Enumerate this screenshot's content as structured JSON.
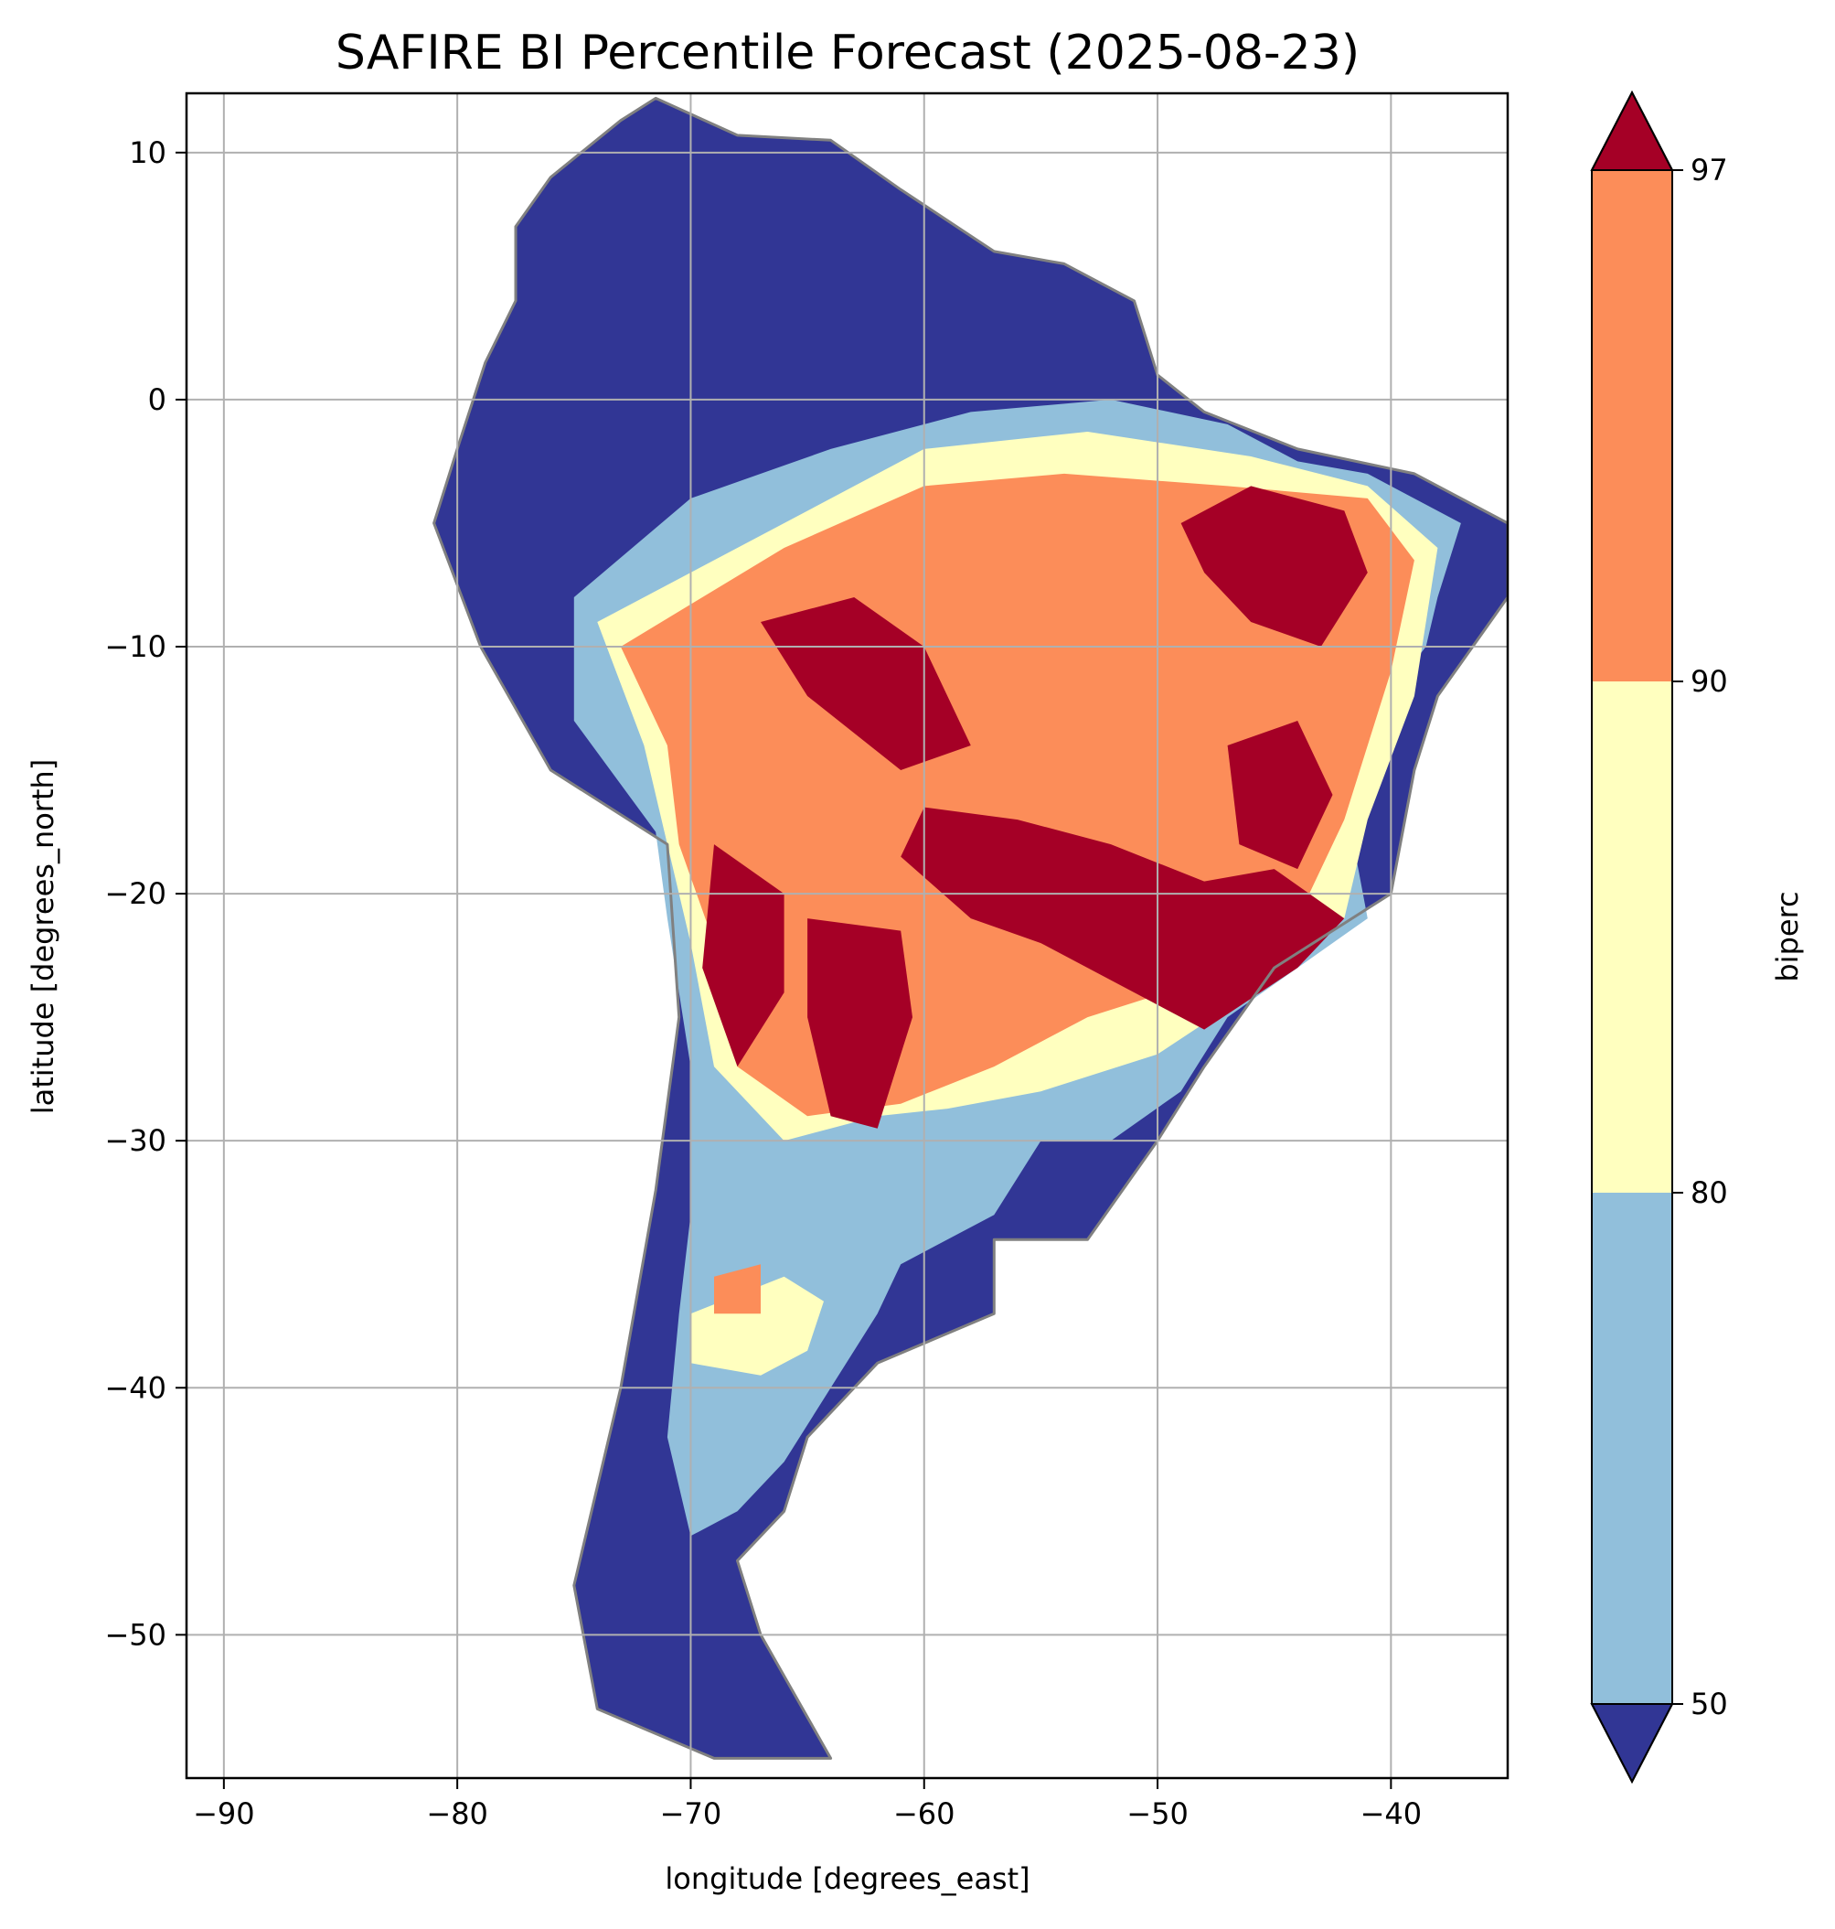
{
  "chart_data": {
    "type": "heatmap",
    "title": "SAFIRE BI Percentile Forecast (2025-08-23)",
    "xlabel": "longitude [degrees_east]",
    "ylabel": "latitude [degrees_north]",
    "xlim": [
      -91.6,
      -35.0
    ],
    "ylim": [
      -55.8,
      12.4
    ],
    "xticks": [
      -90,
      -80,
      -70,
      -60,
      -50,
      -40
    ],
    "xtick_labels": [
      "−90",
      "−80",
      "−70",
      "−60",
      "−50",
      "−40"
    ],
    "yticks": [
      10,
      0,
      -10,
      -20,
      -30,
      -40,
      -50
    ],
    "ytick_labels": [
      "10",
      "0",
      "−10",
      "−20",
      "−30",
      "−40",
      "−50"
    ],
    "grid": true,
    "colorbar": {
      "label": "biperc",
      "boundaries": [
        50,
        80,
        90,
        97
      ],
      "tick_labels": [
        "50",
        "80",
        "90",
        "97"
      ],
      "extend": "both",
      "under_color": "#313695",
      "over_color": "#a50026",
      "colors": [
        "#91bfdb",
        "#ffffbf",
        "#fc8d59"
      ]
    },
    "border_color": "#808080",
    "grid_color": "#b0b0b0",
    "regions": [
      {
        "category": "<50",
        "color": "#313695",
        "lon_lat": [
          [
            -80,
            -2
          ],
          [
            -81,
            -5
          ],
          [
            -79,
            -10
          ],
          [
            -76,
            -15
          ],
          [
            -71,
            -18
          ],
          [
            -70.5,
            -25
          ],
          [
            -71.5,
            -32
          ],
          [
            -73,
            -40
          ],
          [
            -75,
            -48
          ],
          [
            -74,
            -53
          ],
          [
            -69,
            -55
          ],
          [
            -64,
            -55
          ],
          [
            -67,
            -50
          ],
          [
            -68,
            -47
          ],
          [
            -66,
            -45
          ],
          [
            -65,
            -42
          ],
          [
            -62,
            -39
          ],
          [
            -57,
            -37
          ],
          [
            -57,
            -34
          ],
          [
            -53,
            -34
          ],
          [
            -50,
            -30
          ],
          [
            -48,
            -27
          ],
          [
            -45,
            -23
          ],
          [
            -40,
            -20
          ],
          [
            -39,
            -15
          ],
          [
            -38,
            -12
          ],
          [
            -35,
            -8
          ],
          [
            -35,
            -5
          ],
          [
            -39,
            -3
          ],
          [
            -44,
            -2
          ],
          [
            -48,
            -0.5
          ],
          [
            -50,
            1
          ],
          [
            -51,
            4
          ],
          [
            -54,
            5.5
          ],
          [
            -57,
            6
          ],
          [
            -61,
            8.5
          ],
          [
            -64,
            10.5
          ],
          [
            -68,
            10.7
          ],
          [
            -71.5,
            12.2
          ],
          [
            -73,
            11.3
          ],
          [
            -76,
            9
          ],
          [
            -77.5,
            7
          ],
          [
            -77.5,
            4
          ],
          [
            -78.8,
            1.5
          ]
        ]
      },
      {
        "category": "50-80",
        "color": "#91bfdb",
        "lon_lat": [
          [
            -75,
            -8
          ],
          [
            -70,
            -4
          ],
          [
            -64,
            -2
          ],
          [
            -58,
            -0.5
          ],
          [
            -52,
            0
          ],
          [
            -47,
            -1
          ],
          [
            -44,
            -2.5
          ],
          [
            -41,
            -3
          ],
          [
            -37,
            -5
          ],
          [
            -38,
            -8
          ],
          [
            -38.5,
            -10
          ],
          [
            -41,
            -13
          ],
          [
            -42,
            -16
          ],
          [
            -41,
            -21
          ],
          [
            -44,
            -23
          ],
          [
            -47,
            -25
          ],
          [
            -49,
            -28
          ],
          [
            -52,
            -30
          ],
          [
            -55,
            -30
          ],
          [
            -57,
            -33
          ],
          [
            -61,
            -35
          ],
          [
            -62,
            -37
          ],
          [
            -64,
            -40
          ],
          [
            -66,
            -43
          ],
          [
            -68,
            -45
          ],
          [
            -70,
            -46
          ],
          [
            -71,
            -42
          ],
          [
            -70.5,
            -37
          ],
          [
            -70,
            -33
          ],
          [
            -70,
            -27
          ],
          [
            -71,
            -21
          ],
          [
            -71.5,
            -17.5
          ],
          [
            -75,
            -13
          ]
        ]
      },
      {
        "category": "80-90",
        "color": "#ffffbf",
        "lon_lat": [
          [
            -74,
            -9
          ],
          [
            -66,
            -5
          ],
          [
            -60,
            -2
          ],
          [
            -53,
            -1.3
          ],
          [
            -46,
            -2.3
          ],
          [
            -41,
            -3.5
          ],
          [
            -38,
            -6
          ],
          [
            -39,
            -12
          ],
          [
            -41,
            -17
          ],
          [
            -42,
            -21
          ],
          [
            -46,
            -24
          ],
          [
            -50,
            -26.5
          ],
          [
            -55,
            -28
          ],
          [
            -59,
            -28.7
          ],
          [
            -62,
            -29
          ],
          [
            -64,
            -29.5
          ],
          [
            -66,
            -30
          ],
          [
            -69,
            -27
          ],
          [
            -70,
            -22
          ],
          [
            -71,
            -18
          ],
          [
            -72,
            -14
          ]
        ]
      },
      {
        "category": "80-90",
        "color": "#ffffbf",
        "lon_lat": [
          [
            -70,
            -37
          ],
          [
            -66,
            -35.5
          ],
          [
            -64.3,
            -36.5
          ],
          [
            -65,
            -38.5
          ],
          [
            -67,
            -39.5
          ],
          [
            -70,
            -39
          ]
        ]
      },
      {
        "category": "90-97",
        "color": "#fc8d59",
        "lon_lat": [
          [
            -73,
            -10
          ],
          [
            -66,
            -6
          ],
          [
            -60,
            -3.5
          ],
          [
            -54,
            -3
          ],
          [
            -47,
            -3.5
          ],
          [
            -41,
            -4
          ],
          [
            -39,
            -6.5
          ],
          [
            -40,
            -11
          ],
          [
            -42,
            -17
          ],
          [
            -44,
            -21
          ],
          [
            -48,
            -23.5
          ],
          [
            -53,
            -25
          ],
          [
            -57,
            -27
          ],
          [
            -61,
            -28.5
          ],
          [
            -65,
            -29
          ],
          [
            -68,
            -27
          ],
          [
            -69,
            -22
          ],
          [
            -70.5,
            -18
          ],
          [
            -71,
            -14
          ]
        ]
      },
      {
        "category": "90-97",
        "color": "#fc8d59",
        "lon_lat": [
          [
            -69,
            -35.5
          ],
          [
            -67,
            -35
          ],
          [
            -67,
            -37
          ],
          [
            -69,
            -37
          ]
        ]
      },
      {
        "category": ">97",
        "color": "#a50026",
        "lon_lat": [
          [
            -67,
            -9
          ],
          [
            -63,
            -8
          ],
          [
            -60,
            -10
          ],
          [
            -58,
            -14
          ],
          [
            -61,
            -15
          ],
          [
            -65,
            -12
          ]
        ]
      },
      {
        "category": ">97",
        "color": "#a50026",
        "lon_lat": [
          [
            -60,
            -16.5
          ],
          [
            -56,
            -17
          ],
          [
            -52,
            -18
          ],
          [
            -48,
            -19.5
          ],
          [
            -45,
            -19
          ],
          [
            -42,
            -21
          ],
          [
            -44,
            -23
          ],
          [
            -48,
            -25.5
          ],
          [
            -52,
            -23.5
          ],
          [
            -55,
            -22
          ],
          [
            -58,
            -21
          ],
          [
            -61,
            -18.5
          ]
        ]
      },
      {
        "category": ">97",
        "color": "#a50026",
        "lon_lat": [
          [
            -65,
            -21
          ],
          [
            -61,
            -21.5
          ],
          [
            -60.5,
            -25
          ],
          [
            -62,
            -29.5
          ],
          [
            -64,
            -29
          ],
          [
            -65,
            -25
          ]
        ]
      },
      {
        "category": ">97",
        "color": "#a50026",
        "lon_lat": [
          [
            -69,
            -18
          ],
          [
            -66,
            -20
          ],
          [
            -66,
            -24
          ],
          [
            -68,
            -27
          ],
          [
            -69.5,
            -23
          ]
        ]
      },
      {
        "category": ">97",
        "color": "#a50026",
        "lon_lat": [
          [
            -49,
            -5
          ],
          [
            -46,
            -3.5
          ],
          [
            -42,
            -4.5
          ],
          [
            -41,
            -7
          ],
          [
            -43,
            -10
          ],
          [
            -46,
            -9
          ],
          [
            -48,
            -7
          ]
        ]
      },
      {
        "category": ">97",
        "color": "#a50026",
        "lon_lat": [
          [
            -47,
            -14
          ],
          [
            -44,
            -13
          ],
          [
            -42.5,
            -16
          ],
          [
            -44,
            -19
          ],
          [
            -46.5,
            -18
          ]
        ]
      }
    ]
  }
}
